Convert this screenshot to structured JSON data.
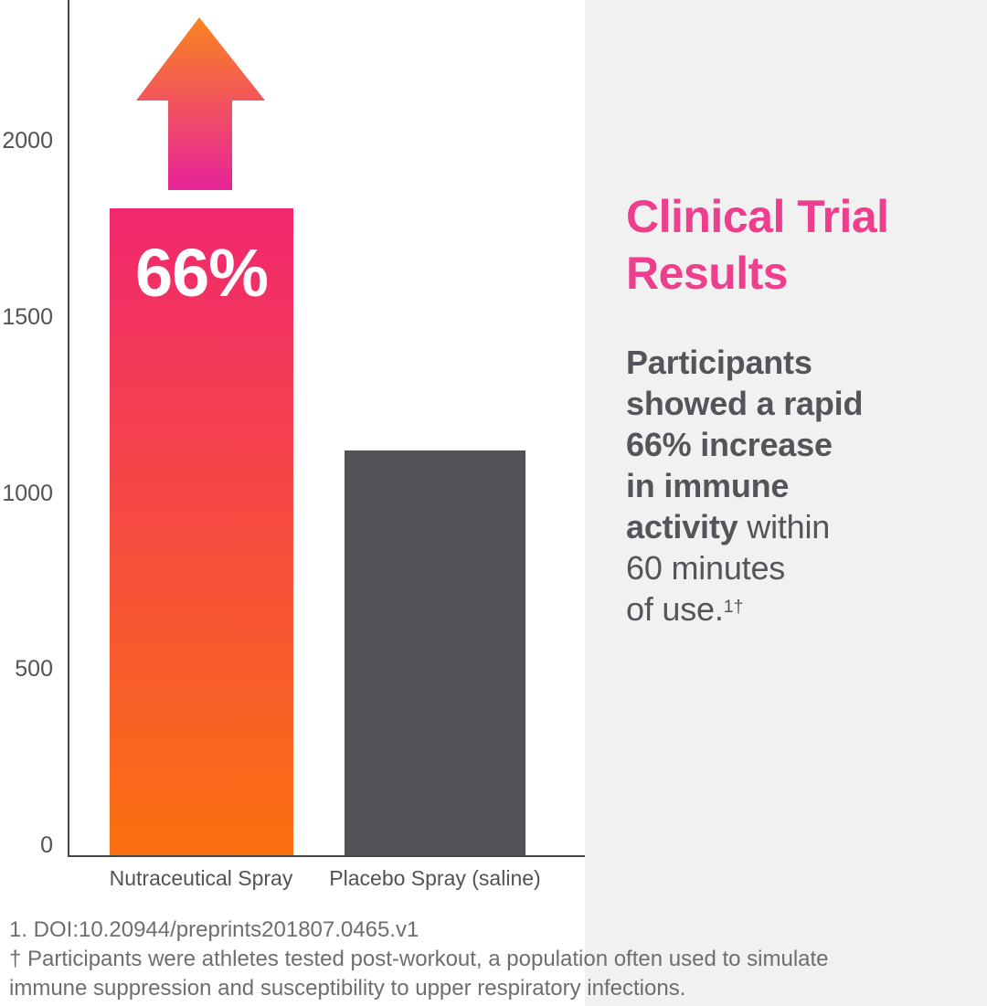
{
  "chart_data": {
    "type": "bar",
    "title": "",
    "xlabel": "",
    "ylabel": "",
    "grid": false,
    "categories": [
      "Nutraceutical Spray",
      "Placebo Spray (saline)"
    ],
    "values": [
      1820,
      1140
    ],
    "yticks": [
      2000,
      1500,
      1000,
      500,
      0
    ],
    "ytick_labels": [
      "2000",
      "1500",
      "1000",
      "500",
      "0"
    ],
    "ylim": [
      0,
      2450
    ],
    "bar_annotations": [
      "66%",
      ""
    ],
    "bar_styles": [
      {
        "type": "gradient",
        "from": "#F1276F",
        "to": "#FB7110"
      },
      {
        "type": "solid",
        "color": "#535158"
      }
    ],
    "arrow_indicator": {
      "on_bar": "Nutraceutical Spray",
      "direction": "up",
      "gradient_from": "#FA8420",
      "gradient_to": "#E72399"
    }
  },
  "panel": {
    "title_lines": [
      "Clinical Trial",
      "Results"
    ],
    "body_lines": [
      {
        "bold": "Participants",
        "regular": ""
      },
      {
        "bold": "showed a rapid",
        "regular": ""
      },
      {
        "bold": "66% increase",
        "regular": ""
      },
      {
        "bold": "in immune",
        "regular": ""
      },
      {
        "bold": "activity",
        "regular": " within"
      },
      {
        "bold": "",
        "regular": "60 minutes"
      },
      {
        "bold": "",
        "regular": "of use.",
        "superscript": "1†"
      }
    ]
  },
  "footnotes": {
    "lines": [
      "1. DOI:10.20944/preprints201807.0465.v1",
      "† Participants were athletes tested post-workout, a population often used to simulate",
      "immune suppression and susceptibility to upper respiratory infections."
    ]
  },
  "colors": {
    "background": "#FFFFFF",
    "panel_bg": "#F2F1F1",
    "axis": "#454449",
    "tick_text": "#525257",
    "category_text": "#525257",
    "body_text": "#55545A",
    "heading_pink": "#EE3F8E",
    "footnote_text": "#6E6E72",
    "bar1_top": "#F1276F",
    "bar1_bottom": "#FB7110",
    "bar2": "#535158",
    "arrow_top": "#FA8420",
    "arrow_bottom": "#E72399",
    "annotation_text": "#FFFFFF"
  }
}
